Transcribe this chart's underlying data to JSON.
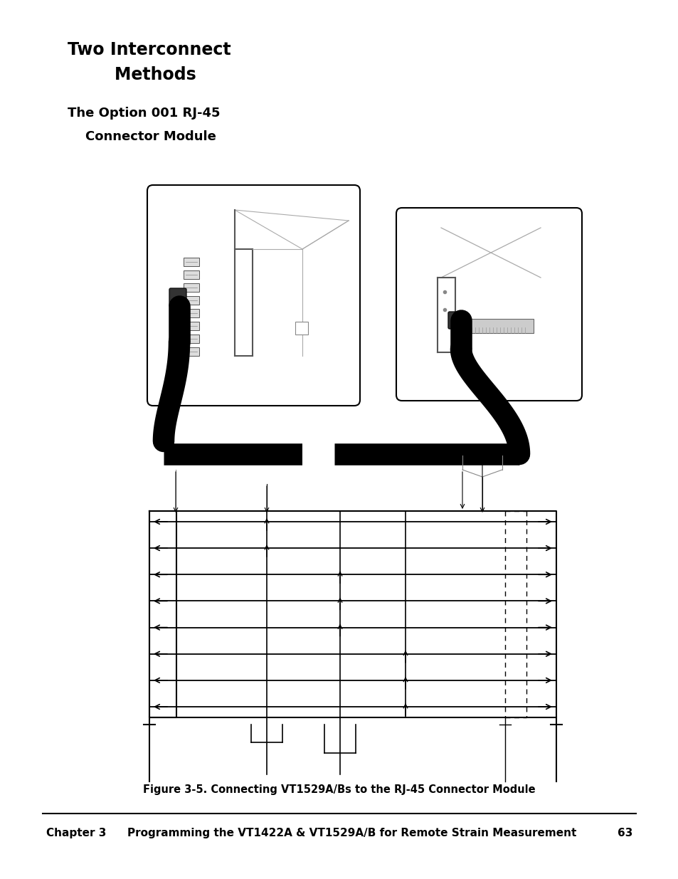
{
  "title_line1": "Two Interconnect",
  "title_line2": "        Methods",
  "subtitle_line1": "The Option 001 RJ-45",
  "subtitle_line2": "    Connector Module",
  "figure_caption": "Figure 3-5. Connecting VT1529A/Bs to the RJ-45 Connector Module",
  "footer_left": "Chapter 3",
  "footer_center": "Programming the VT1422A & VT1529A/B for Remote Strain Measurement",
  "footer_page": "63",
  "bg_color": "#ffffff",
  "text_color": "#000000"
}
